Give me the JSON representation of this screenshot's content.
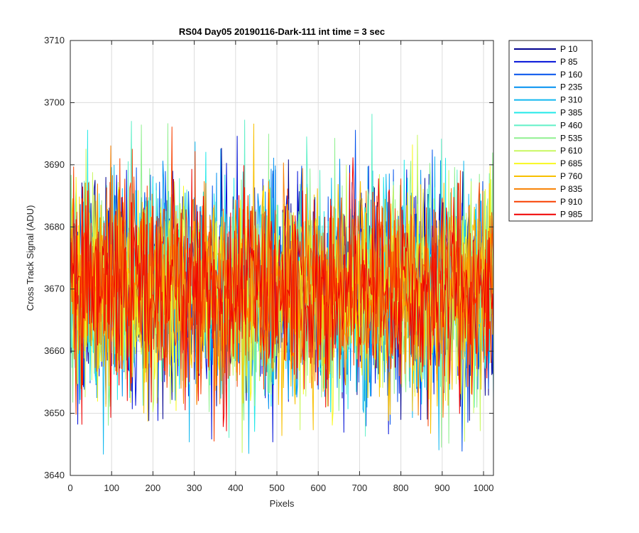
{
  "chart_data": {
    "type": "line",
    "title": "RS04 Day05 20190116-Dark-111 int time = 3 sec",
    "xlabel": "Pixels",
    "ylabel": "Cross Track Signal (ADU)",
    "xlim": [
      0,
      1024
    ],
    "ylim": [
      3640,
      3710
    ],
    "xticks": [
      0,
      100,
      200,
      300,
      400,
      500,
      600,
      700,
      800,
      900,
      1000
    ],
    "yticks": [
      3640,
      3650,
      3660,
      3670,
      3680,
      3690,
      3700,
      3710
    ],
    "grid": true,
    "legend_position": "outside-top-right",
    "baseline_level": 3670,
    "typical_range": [
      3653,
      3690
    ],
    "observed_extremes": {
      "min": 3643,
      "max": 3702
    },
    "series": [
      {
        "name": "P 10",
        "color": "#00008f"
      },
      {
        "name": "P 85",
        "color": "#0010d8"
      },
      {
        "name": "P 160",
        "color": "#0050ec"
      },
      {
        "name": "P 235",
        "color": "#0090f0"
      },
      {
        "name": "P 310",
        "color": "#10b8f0"
      },
      {
        "name": "P 385",
        "color": "#20e8e8"
      },
      {
        "name": "P 460",
        "color": "#60f0c8"
      },
      {
        "name": "P 535",
        "color": "#90f090"
      },
      {
        "name": "P 610",
        "color": "#c8f860"
      },
      {
        "name": "P 685",
        "color": "#f8f820"
      },
      {
        "name": "P 760",
        "color": "#f8c000"
      },
      {
        "name": "P 835",
        "color": "#f88000"
      },
      {
        "name": "P 910",
        "color": "#f84000"
      },
      {
        "name": "P 985",
        "color": "#f00000"
      }
    ]
  }
}
